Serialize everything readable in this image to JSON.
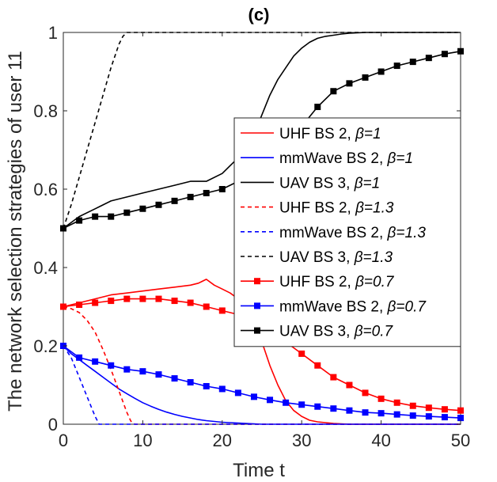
{
  "chart_data": {
    "type": "line",
    "title": "(c)",
    "xlabel": "Time t",
    "ylabel": "The network selection strategies of user 11",
    "xlim": [
      0,
      50
    ],
    "ylim": [
      0,
      1
    ],
    "xticks": [
      "0",
      "10",
      "20",
      "30",
      "40",
      "50"
    ],
    "yticks": [
      "0",
      "0.2",
      "0.4",
      "0.6",
      "0.8",
      "1"
    ],
    "legend_position": "right-center",
    "series": [
      {
        "name": "UHF BS 2, β=1",
        "label": "UHF BS 2,",
        "beta": "β=1",
        "color": "#ff0000",
        "dash": "solid",
        "marker": "none",
        "x": [
          0,
          2,
          4,
          6,
          8,
          10,
          12,
          14,
          16,
          17,
          18,
          19,
          20,
          21,
          22,
          23,
          24,
          25,
          26,
          27,
          28,
          29,
          30,
          31,
          32,
          33,
          34,
          35,
          36,
          38,
          40,
          45,
          50
        ],
        "y": [
          0.3,
          0.31,
          0.32,
          0.33,
          0.335,
          0.34,
          0.345,
          0.35,
          0.355,
          0.36,
          0.37,
          0.355,
          0.345,
          0.335,
          0.32,
          0.3,
          0.26,
          0.21,
          0.15,
          0.1,
          0.06,
          0.035,
          0.02,
          0.01,
          0.006,
          0.004,
          0.002,
          0.001,
          0.0,
          0.0,
          0.0,
          0.0,
          0.0
        ]
      },
      {
        "name": "mmWave BS 2, β=1",
        "label": "mmWave BS 2,",
        "beta": "β=1",
        "color": "#0000ff",
        "dash": "solid",
        "marker": "none",
        "x": [
          0,
          1,
          2,
          3,
          4,
          5,
          6,
          7,
          8,
          9,
          10,
          11,
          12,
          13,
          14,
          15,
          16,
          17,
          18,
          19,
          20,
          21,
          22,
          23,
          24,
          25,
          30,
          40,
          50
        ],
        "y": [
          0.2,
          0.18,
          0.165,
          0.15,
          0.135,
          0.12,
          0.105,
          0.09,
          0.078,
          0.066,
          0.055,
          0.046,
          0.038,
          0.031,
          0.025,
          0.02,
          0.016,
          0.012,
          0.009,
          0.007,
          0.005,
          0.004,
          0.003,
          0.002,
          0.001,
          0.0,
          0.0,
          0.0,
          0.0
        ]
      },
      {
        "name": "UAV BS 3, β=1",
        "label": "UAV BS 3,",
        "beta": "β=1",
        "color": "#000000",
        "dash": "solid",
        "marker": "none",
        "x": [
          0,
          2,
          4,
          6,
          8,
          10,
          12,
          14,
          16,
          18,
          20,
          21,
          22,
          23,
          24,
          25,
          26,
          27,
          28,
          29,
          30,
          31,
          32,
          33,
          34,
          35,
          36,
          37,
          38,
          40,
          42,
          44,
          46,
          48,
          50
        ],
        "y": [
          0.5,
          0.53,
          0.55,
          0.57,
          0.58,
          0.59,
          0.6,
          0.61,
          0.62,
          0.62,
          0.64,
          0.66,
          0.68,
          0.7,
          0.74,
          0.79,
          0.84,
          0.88,
          0.91,
          0.94,
          0.96,
          0.975,
          0.985,
          0.99,
          0.993,
          0.996,
          0.998,
          0.999,
          1.0,
          1.0,
          1.0,
          1.0,
          1.0,
          1.0,
          1.0
        ]
      },
      {
        "name": "UHF BS 2, β=1.3",
        "label": "UHF BS 2,",
        "beta": "β=1.3",
        "color": "#ff0000",
        "dash": "dashed",
        "marker": "none",
        "x": [
          0,
          1,
          2,
          3,
          4,
          5,
          6,
          7,
          8,
          8.5,
          9,
          50
        ],
        "y": [
          0.3,
          0.295,
          0.285,
          0.265,
          0.235,
          0.19,
          0.14,
          0.085,
          0.03,
          0.008,
          0.0,
          0.0
        ]
      },
      {
        "name": "mmWave BS 2, β=1.3",
        "label": "mmWave BS 2,",
        "beta": "β=1.3",
        "color": "#0000ff",
        "dash": "dashed",
        "marker": "none",
        "x": [
          0,
          1,
          2,
          3,
          4,
          4.5,
          50
        ],
        "y": [
          0.2,
          0.17,
          0.12,
          0.07,
          0.02,
          0.0,
          0.0
        ]
      },
      {
        "name": "UAV BS 3, β=1.3",
        "label": "UAV BS 3,",
        "beta": "β=1.3",
        "color": "#000000",
        "dash": "dashed",
        "marker": "none",
        "x": [
          0,
          1,
          2,
          3,
          4,
          5,
          6,
          7,
          7.5,
          8,
          50
        ],
        "y": [
          0.5,
          0.56,
          0.63,
          0.7,
          0.77,
          0.84,
          0.91,
          0.97,
          0.99,
          1.0,
          1.0
        ]
      },
      {
        "name": "UHF BS 2, β=0.7",
        "label": "UHF BS 2,",
        "beta": "β=0.7",
        "color": "#ff0000",
        "dash": "solid",
        "marker": "square",
        "x": [
          0,
          2,
          4,
          6,
          8,
          10,
          12,
          14,
          16,
          18,
          20,
          22,
          24,
          26,
          28,
          30,
          32,
          34,
          36,
          38,
          40,
          42,
          44,
          46,
          48,
          50
        ],
        "y": [
          0.3,
          0.305,
          0.31,
          0.315,
          0.32,
          0.32,
          0.32,
          0.315,
          0.31,
          0.3,
          0.29,
          0.28,
          0.26,
          0.235,
          0.21,
          0.18,
          0.15,
          0.12,
          0.1,
          0.08,
          0.065,
          0.055,
          0.047,
          0.042,
          0.038,
          0.035
        ]
      },
      {
        "name": "mmWave BS 2, β=0.7",
        "label": "mmWave BS 2,",
        "beta": "β=0.7",
        "color": "#0000ff",
        "dash": "solid",
        "marker": "square",
        "x": [
          0,
          2,
          4,
          6,
          8,
          10,
          12,
          14,
          16,
          18,
          20,
          22,
          24,
          26,
          28,
          30,
          32,
          34,
          36,
          38,
          40,
          42,
          44,
          46,
          48,
          50
        ],
        "y": [
          0.2,
          0.17,
          0.16,
          0.15,
          0.14,
          0.135,
          0.127,
          0.117,
          0.107,
          0.097,
          0.09,
          0.08,
          0.07,
          0.062,
          0.055,
          0.05,
          0.045,
          0.04,
          0.035,
          0.03,
          0.028,
          0.025,
          0.022,
          0.02,
          0.018,
          0.016
        ]
      },
      {
        "name": "UAV BS 3, β=0.7",
        "label": "UAV BS 3,",
        "beta": "β=0.7",
        "color": "#000000",
        "dash": "solid",
        "marker": "square",
        "x": [
          0,
          2,
          4,
          6,
          8,
          10,
          12,
          14,
          16,
          18,
          20,
          22,
          24,
          26,
          28,
          30,
          32,
          34,
          36,
          38,
          40,
          42,
          44,
          46,
          48,
          50
        ],
        "y": [
          0.5,
          0.52,
          0.53,
          0.53,
          0.54,
          0.55,
          0.56,
          0.57,
          0.58,
          0.59,
          0.6,
          0.62,
          0.64,
          0.67,
          0.7,
          0.76,
          0.81,
          0.85,
          0.87,
          0.885,
          0.9,
          0.915,
          0.925,
          0.935,
          0.945,
          0.952
        ]
      }
    ]
  }
}
